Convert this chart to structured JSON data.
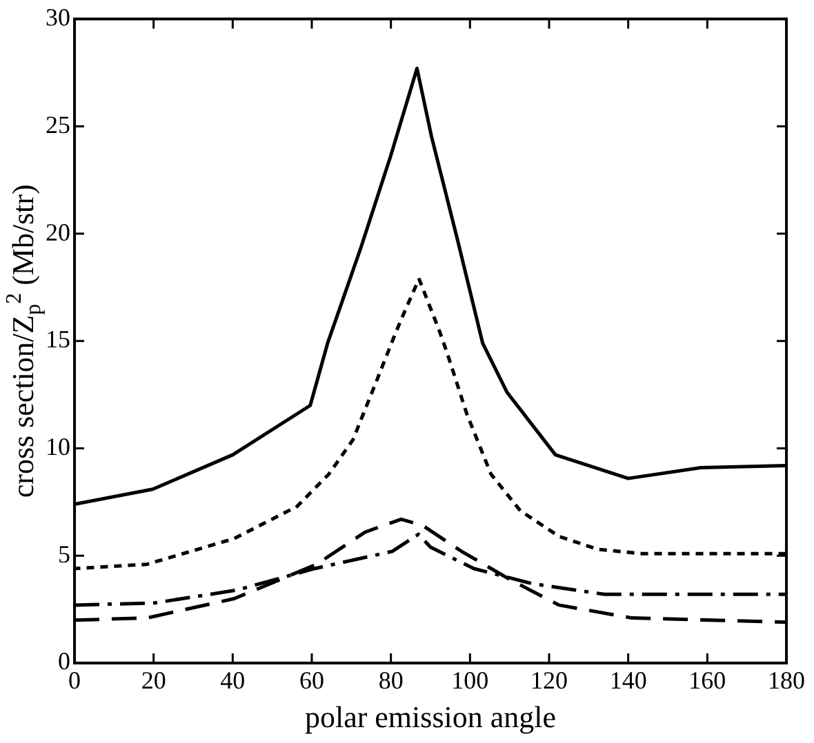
{
  "chart_data": {
    "type": "line",
    "xlabel": "polar emission angle",
    "ylabel": "cross section/Z$_{p}$$^{2}$ (Mb/str)",
    "xlim": [
      0,
      180
    ],
    "xticks": [
      0,
      20,
      40,
      60,
      80,
      100,
      120,
      140,
      160,
      180
    ],
    "ylim": [
      0,
      30
    ],
    "yticks": [
      0,
      5,
      10,
      15,
      20,
      25,
      30
    ],
    "grid": false,
    "legend": false,
    "marker": "none",
    "series": [
      {
        "color": "#000000",
        "line_style": "solid",
        "x": [
          0,
          19.8,
          40,
          59.6,
          64,
          72.5,
          79.9,
          86.6,
          90.3,
          97,
          103.2,
          109.4,
          121.6,
          140,
          158.4,
          180
        ],
        "values": [
          7.4,
          8.1,
          9.7,
          12.0,
          14.9,
          19.4,
          23.6,
          27.7,
          24.5,
          19.6,
          14.9,
          12.6,
          9.7,
          8.6,
          9.1,
          9.2
        ]
      },
      {
        "color": "#000000",
        "line_style": "dotted",
        "x": [
          0,
          18.3,
          40.4,
          56.3,
          64.3,
          70.4,
          76.5,
          80.8,
          82.6,
          87.1,
          90.5,
          92.4,
          94.3,
          99.2,
          105.3,
          112.7,
          122.5,
          132.3,
          143.3,
          180
        ],
        "values": [
          4.4,
          4.6,
          5.8,
          7.3,
          8.8,
          10.4,
          13.2,
          15.2,
          16.0,
          17.9,
          16.3,
          15.4,
          14.4,
          11.6,
          8.8,
          7.1,
          5.9,
          5.3,
          5.1,
          5.1
        ]
      },
      {
        "color": "#000000",
        "line_style": "dashed",
        "x": [
          0,
          18.3,
          40.4,
          61.2,
          73.5,
          82.6,
          88.1,
          97.9,
          110,
          122.5,
          140.9,
          180
        ],
        "values": [
          2.0,
          2.1,
          3.0,
          4.6,
          6.1,
          6.7,
          6.4,
          5.2,
          3.9,
          2.7,
          2.1,
          1.9
        ]
      },
      {
        "color": "#000000",
        "line_style": "dashdot",
        "x": [
          0,
          20.3,
          41.1,
          60.7,
          80.3,
          87,
          90,
          101,
          115.7,
          134,
          180
        ],
        "values": [
          2.7,
          2.8,
          3.4,
          4.4,
          5.2,
          6.0,
          5.4,
          4.4,
          3.7,
          3.2,
          3.2
        ]
      }
    ]
  }
}
